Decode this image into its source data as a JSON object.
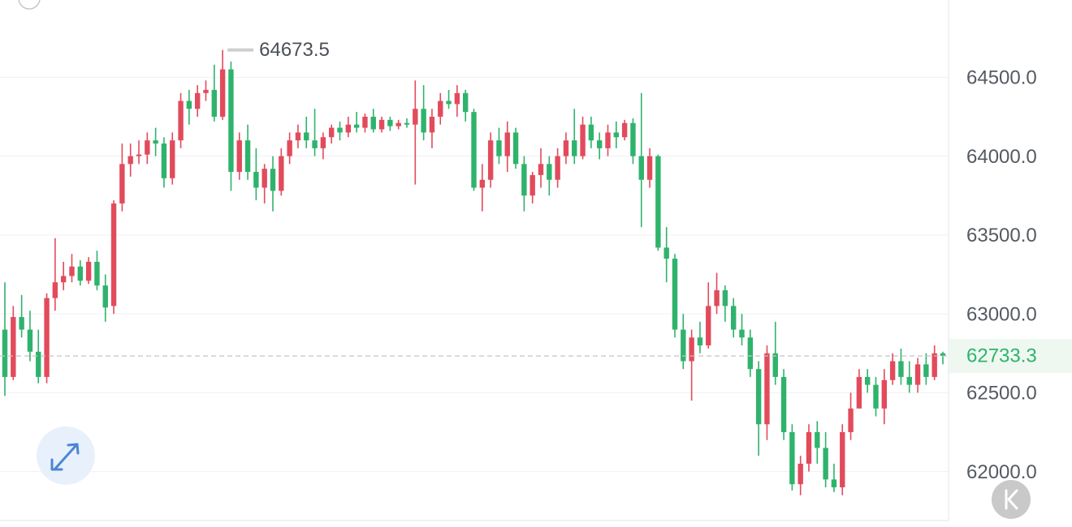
{
  "chart_data": {
    "type": "candlestick",
    "up_color": "#e24b5c",
    "down_color": "#2fb36c",
    "ylim": [
      61700,
      64990
    ],
    "yticks": [
      {
        "value": 62000,
        "label": "62000.0"
      },
      {
        "value": 62500,
        "label": "62500.0"
      },
      {
        "value": 63000,
        "label": "63000.0"
      },
      {
        "value": 63500,
        "label": "63500.0"
      },
      {
        "value": 64000,
        "label": "64000.0"
      },
      {
        "value": 64500,
        "label": "64500.0"
      }
    ],
    "grid": true,
    "ohlc": [
      [
        62900,
        63200,
        62480,
        62600
      ],
      [
        62600,
        63050,
        62580,
        62980
      ],
      [
        62980,
        63120,
        62850,
        62900
      ],
      [
        62900,
        63020,
        62700,
        62760
      ],
      [
        62760,
        62900,
        62560,
        62600
      ],
      [
        62600,
        63130,
        62560,
        63100
      ],
      [
        63100,
        63480,
        63020,
        63200
      ],
      [
        63200,
        63330,
        63150,
        63240
      ],
      [
        63240,
        63380,
        63200,
        63300
      ],
      [
        63300,
        63340,
        63180,
        63210
      ],
      [
        63210,
        63360,
        63190,
        63330
      ],
      [
        63330,
        63400,
        63150,
        63180
      ],
      [
        63180,
        63250,
        62950,
        63040
      ],
      [
        63050,
        63720,
        63000,
        63700
      ],
      [
        63700,
        64080,
        63650,
        63950
      ],
      [
        63950,
        64080,
        63870,
        64000
      ],
      [
        64000,
        64100,
        63950,
        64010
      ],
      [
        64010,
        64150,
        63950,
        64100
      ],
      [
        64100,
        64180,
        64000,
        64080
      ],
      [
        64080,
        64120,
        63800,
        63860
      ],
      [
        63860,
        64150,
        63820,
        64100
      ],
      [
        64100,
        64400,
        64050,
        64350
      ],
      [
        64350,
        64420,
        64200,
        64300
      ],
      [
        64300,
        64450,
        64250,
        64400
      ],
      [
        64400,
        64480,
        64350,
        64420
      ],
      [
        64420,
        64580,
        64220,
        64250
      ],
      [
        64250,
        64673.5,
        64230,
        64550
      ],
      [
        64550,
        64600,
        63780,
        63900
      ],
      [
        63900,
        64150,
        63850,
        64100
      ],
      [
        64100,
        64200,
        63850,
        63900
      ],
      [
        63900,
        64050,
        63720,
        63800
      ],
      [
        63800,
        63950,
        63700,
        63920
      ],
      [
        63920,
        64000,
        63650,
        63780
      ],
      [
        63780,
        64050,
        63750,
        64000
      ],
      [
        64000,
        64150,
        63950,
        64100
      ],
      [
        64100,
        64200,
        64050,
        64150
      ],
      [
        64150,
        64250,
        64050,
        64100
      ],
      [
        64100,
        64300,
        64000,
        64050
      ],
      [
        64050,
        64150,
        63980,
        64120
      ],
      [
        64120,
        64200,
        64080,
        64180
      ],
      [
        64180,
        64220,
        64100,
        64150
      ],
      [
        64150,
        64250,
        64120,
        64200
      ],
      [
        64200,
        64280,
        64150,
        64180
      ],
      [
        64180,
        64270,
        64150,
        64250
      ],
      [
        64250,
        64300,
        64150,
        64170
      ],
      [
        64170,
        64250,
        64150,
        64230
      ],
      [
        64230,
        64250,
        64160,
        64190
      ],
      [
        64190,
        64230,
        64170,
        64210
      ],
      [
        64210,
        64240,
        64180,
        64200
      ],
      [
        64200,
        64480,
        63820,
        64300
      ],
      [
        64300,
        64450,
        64100,
        64150
      ],
      [
        64150,
        64300,
        64050,
        64250
      ],
      [
        64250,
        64400,
        64200,
        64350
      ],
      [
        64350,
        64420,
        64300,
        64330
      ],
      [
        64330,
        64450,
        64250,
        64400
      ],
      [
        64400,
        64420,
        64220,
        64280
      ],
      [
        64280,
        64300,
        63780,
        63800
      ],
      [
        63800,
        63950,
        63650,
        63850
      ],
      [
        63850,
        64150,
        63800,
        64100
      ],
      [
        64100,
        64180,
        63950,
        64000
      ],
      [
        64000,
        64220,
        63900,
        64150
      ],
      [
        64150,
        64180,
        63920,
        63950
      ],
      [
        63950,
        64000,
        63650,
        63750
      ],
      [
        63750,
        63900,
        63700,
        63880
      ],
      [
        63880,
        64050,
        63800,
        63950
      ],
      [
        63950,
        64000,
        63750,
        63850
      ],
      [
        63850,
        64050,
        63800,
        64000
      ],
      [
        64000,
        64150,
        63950,
        64100
      ],
      [
        64100,
        64300,
        63950,
        64000
      ],
      [
        64000,
        64250,
        63980,
        64200
      ],
      [
        64200,
        64250,
        64050,
        64100
      ],
      [
        64100,
        64150,
        63980,
        64050
      ],
      [
        64050,
        64200,
        64000,
        64150
      ],
      [
        64150,
        64220,
        64050,
        64120
      ],
      [
        64120,
        64230,
        64100,
        64210
      ],
      [
        64210,
        64240,
        63950,
        64000
      ],
      [
        64000,
        64400,
        63550,
        63850
      ],
      [
        63850,
        64050,
        63800,
        64000
      ],
      [
        64000,
        64010,
        63400,
        63420
      ],
      [
        63420,
        63550,
        63200,
        63350
      ],
      [
        63350,
        63380,
        62850,
        62900
      ],
      [
        62900,
        63000,
        62650,
        62700
      ],
      [
        62700,
        62900,
        62450,
        62850
      ],
      [
        62850,
        62950,
        62750,
        62800
      ],
      [
        62800,
        63200,
        62780,
        63050
      ],
      [
        63050,
        63260,
        63000,
        63150
      ],
      [
        63150,
        63180,
        62950,
        63050
      ],
      [
        63050,
        63100,
        62850,
        62900
      ],
      [
        62900,
        63000,
        62800,
        62850
      ],
      [
        62850,
        62900,
        62600,
        62650
      ],
      [
        62650,
        62700,
        62100,
        62300
      ],
      [
        62300,
        62800,
        62200,
        62750
      ],
      [
        62750,
        62950,
        62550,
        62600
      ],
      [
        62600,
        62650,
        62200,
        62250
      ],
      [
        62250,
        62300,
        61880,
        61920
      ],
      [
        61920,
        62100,
        61850,
        62050
      ],
      [
        62050,
        62300,
        62000,
        62250
      ],
      [
        62250,
        62320,
        62050,
        62150
      ],
      [
        62150,
        62250,
        61900,
        61950
      ],
      [
        61950,
        62050,
        61870,
        61900
      ],
      [
        61900,
        62300,
        61850,
        62250
      ],
      [
        62250,
        62500,
        62200,
        62400
      ],
      [
        62400,
        62650,
        62400,
        62600
      ],
      [
        62600,
        62650,
        62500,
        62550
      ],
      [
        62550,
        62600,
        62350,
        62400
      ],
      [
        62400,
        62650,
        62300,
        62580
      ],
      [
        62580,
        62750,
        62550,
        62700
      ],
      [
        62700,
        62780,
        62550,
        62600
      ],
      [
        62600,
        62700,
        62500,
        62550
      ],
      [
        62550,
        62720,
        62500,
        62680
      ],
      [
        62680,
        62750,
        62550,
        62600
      ],
      [
        62600,
        62800,
        62580,
        62750
      ],
      [
        62750,
        62760,
        62680,
        62733.3
      ]
    ]
  }
}
